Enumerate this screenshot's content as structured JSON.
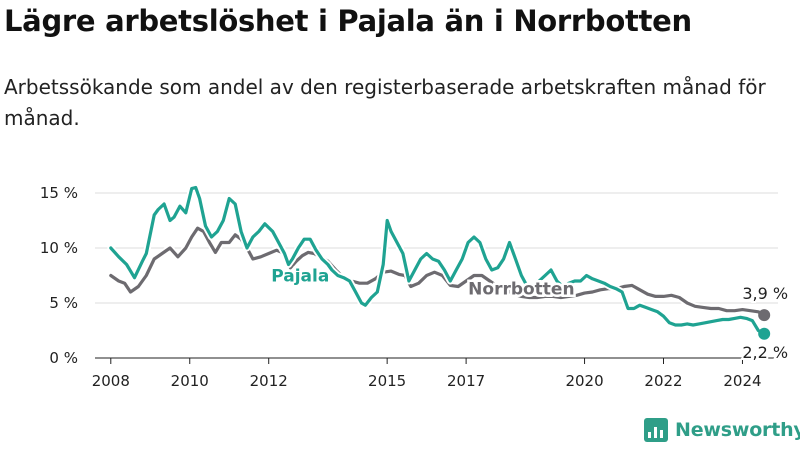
{
  "title": "Lägre arbetslöshet i Pajala än i Norrbotten",
  "subtitle": "Arbetssökande som andel av den registerbaserade arbetskraften månad för månad.",
  "brand": "Newsworthy",
  "colors": {
    "pajala": "#1fa392",
    "norrbotten": "#6d6b70",
    "grid": "#dddddd",
    "axis": "#222222"
  },
  "chart_data": {
    "type": "line",
    "xlim": [
      2007.6,
      2024.9
    ],
    "ylim": [
      0,
      15
    ],
    "grid": "horizontal",
    "yticks": [
      0,
      5,
      10,
      15
    ],
    "ytick_labels": [
      "0 %",
      "5 %",
      "10 %",
      "15 %"
    ],
    "xticks": [
      2008,
      2010,
      2012,
      2015,
      2017,
      2020,
      2022,
      2024
    ],
    "xtick_labels": [
      "2008",
      "2010",
      "2012",
      "2015",
      "2017",
      "2020",
      "2022",
      "2024"
    ],
    "series": [
      {
        "name": "Pajala",
        "end_label": "2,2 %",
        "x": [
          2008.0,
          2008.2,
          2008.4,
          2008.6,
          2008.8,
          2008.9,
          2009.1,
          2009.2,
          2009.35,
          2009.5,
          2009.6,
          2009.75,
          2009.9,
          2010.05,
          2010.15,
          2010.25,
          2010.4,
          2010.55,
          2010.7,
          2010.85,
          2011.0,
          2011.15,
          2011.3,
          2011.45,
          2011.6,
          2011.75,
          2011.9,
          2012.1,
          2012.25,
          2012.4,
          2012.5,
          2012.6,
          2012.75,
          2012.9,
          2013.05,
          2013.2,
          2013.35,
          2013.5,
          2013.6,
          2013.75,
          2013.9,
          2014.05,
          2014.2,
          2014.35,
          2014.45,
          2014.6,
          2014.75,
          2014.9,
          2015.0,
          2015.1,
          2015.25,
          2015.4,
          2015.55,
          2015.7,
          2015.85,
          2016.0,
          2016.15,
          2016.3,
          2016.45,
          2016.6,
          2016.75,
          2016.9,
          2017.05,
          2017.2,
          2017.35,
          2017.5,
          2017.65,
          2017.8,
          2017.95,
          2018.1,
          2018.25,
          2018.4,
          2018.55,
          2018.7,
          2018.85,
          2019.0,
          2019.15,
          2019.3,
          2019.45,
          2019.6,
          2019.75,
          2019.9,
          2020.05,
          2020.2,
          2020.35,
          2020.5,
          2020.65,
          2020.8,
          2020.95,
          2021.1,
          2021.25,
          2021.4,
          2021.55,
          2021.7,
          2021.85,
          2022.0,
          2022.15,
          2022.3,
          2022.45,
          2022.6,
          2022.75,
          2022.9,
          2023.05,
          2023.2,
          2023.35,
          2023.5,
          2023.65,
          2023.8,
          2023.95,
          2024.1,
          2024.25,
          2024.4,
          2024.55
        ],
        "y": [
          10.0,
          9.2,
          8.5,
          7.3,
          8.8,
          9.5,
          13.0,
          13.5,
          14.0,
          12.5,
          12.8,
          13.8,
          13.2,
          15.4,
          15.5,
          14.5,
          12.0,
          11.0,
          11.5,
          12.5,
          14.5,
          14.0,
          11.5,
          10.0,
          11.0,
          11.5,
          12.2,
          11.5,
          10.5,
          9.5,
          8.5,
          9.0,
          10.0,
          10.8,
          10.8,
          9.8,
          9.0,
          8.5,
          8.0,
          7.5,
          7.3,
          7.0,
          6.0,
          5.0,
          4.8,
          5.5,
          6.0,
          8.5,
          12.5,
          11.5,
          10.5,
          9.5,
          7.0,
          8.0,
          9.0,
          9.5,
          9.0,
          8.8,
          8.0,
          7.0,
          8.0,
          9.0,
          10.5,
          11.0,
          10.5,
          9.0,
          8.0,
          8.2,
          9.0,
          10.5,
          9.0,
          7.5,
          6.5,
          6.0,
          7.0,
          7.5,
          8.0,
          7.0,
          6.5,
          6.8,
          7.0,
          7.0,
          7.5,
          7.2,
          7.0,
          6.8,
          6.5,
          6.3,
          6.0,
          4.5,
          4.5,
          4.8,
          4.6,
          4.4,
          4.2,
          3.8,
          3.2,
          3.0,
          3.0,
          3.1,
          3.0,
          3.1,
          3.2,
          3.3,
          3.4,
          3.5,
          3.5,
          3.6,
          3.7,
          3.6,
          3.4,
          2.5,
          2.2
        ]
      },
      {
        "name": "Norrbotten",
        "end_label": "3,9 %",
        "x": [
          2008.0,
          2008.2,
          2008.35,
          2008.5,
          2008.7,
          2008.9,
          2009.1,
          2009.3,
          2009.5,
          2009.7,
          2009.9,
          2010.05,
          2010.2,
          2010.35,
          2010.5,
          2010.65,
          2010.8,
          2011.0,
          2011.15,
          2011.3,
          2011.45,
          2011.6,
          2011.8,
          2012.0,
          2012.2,
          2012.4,
          2012.55,
          2012.7,
          2012.85,
          2013.0,
          2013.15,
          2013.3,
          2013.5,
          2013.7,
          2013.9,
          2014.1,
          2014.3,
          2014.5,
          2014.7,
          2014.9,
          2015.1,
          2015.3,
          2015.45,
          2015.6,
          2015.8,
          2016.0,
          2016.2,
          2016.4,
          2016.6,
          2016.8,
          2017.0,
          2017.2,
          2017.4,
          2017.6,
          2017.8,
          2018.0,
          2018.2,
          2018.4,
          2018.6,
          2018.8,
          2019.0,
          2019.2,
          2019.4,
          2019.6,
          2019.8,
          2020.0,
          2020.2,
          2020.4,
          2020.6,
          2020.8,
          2021.0,
          2021.2,
          2021.4,
          2021.6,
          2021.8,
          2022.0,
          2022.2,
          2022.4,
          2022.6,
          2022.8,
          2023.0,
          2023.2,
          2023.4,
          2023.6,
          2023.8,
          2024.0,
          2024.2,
          2024.4,
          2024.55
        ],
        "y": [
          7.5,
          7.0,
          6.8,
          6.0,
          6.5,
          7.5,
          9.0,
          9.5,
          10.0,
          9.2,
          10.0,
          11.0,
          11.8,
          11.5,
          10.5,
          9.6,
          10.5,
          10.5,
          11.2,
          10.8,
          10.0,
          9.0,
          9.2,
          9.5,
          9.8,
          9.5,
          8.2,
          8.8,
          9.3,
          9.6,
          9.5,
          9.2,
          8.8,
          8.0,
          7.3,
          7.0,
          6.8,
          6.8,
          7.2,
          7.8,
          7.9,
          7.6,
          7.5,
          6.5,
          6.8,
          7.5,
          7.8,
          7.5,
          6.6,
          6.5,
          7.0,
          7.5,
          7.5,
          7.0,
          6.5,
          6.3,
          5.8,
          5.6,
          5.5,
          5.5,
          5.6,
          5.6,
          5.5,
          5.6,
          5.7,
          5.9,
          6.0,
          6.2,
          6.3,
          6.3,
          6.5,
          6.6,
          6.2,
          5.8,
          5.6,
          5.6,
          5.7,
          5.5,
          5.0,
          4.7,
          4.6,
          4.5,
          4.5,
          4.3,
          4.3,
          4.4,
          4.3,
          4.2,
          3.9
        ]
      }
    ]
  }
}
